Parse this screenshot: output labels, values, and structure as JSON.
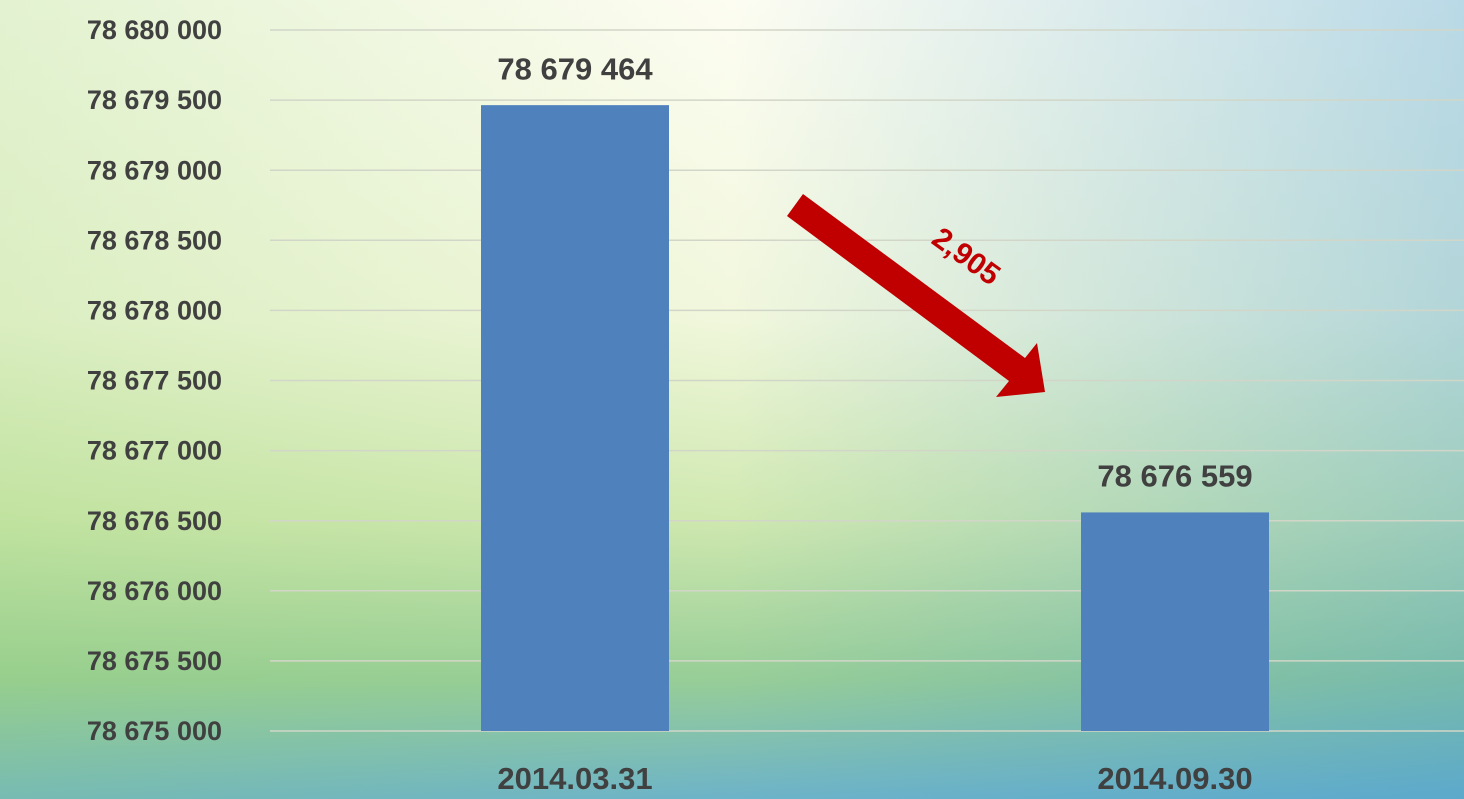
{
  "chart_data": {
    "type": "bar",
    "categories": [
      "2014.03.31",
      "2014.09.30"
    ],
    "values": [
      78679464,
      78676559
    ],
    "value_labels": [
      "78 679 464",
      "78 676 559"
    ],
    "color": "#4f81bd",
    "ylim": [
      78675000,
      78680000
    ],
    "yticks": [
      {
        "value": 78675000,
        "label": "78 675 000"
      },
      {
        "value": 78675500,
        "label": "78 675 500"
      },
      {
        "value": 78676000,
        "label": "78 676 000"
      },
      {
        "value": 78676500,
        "label": "78 676 500"
      },
      {
        "value": 78677000,
        "label": "78 677 000"
      },
      {
        "value": 78677500,
        "label": "78 677 500"
      },
      {
        "value": 78678000,
        "label": "78 678 000"
      },
      {
        "value": 78678500,
        "label": "78 678 500"
      },
      {
        "value": 78679000,
        "label": "78 679 000"
      },
      {
        "value": 78679500,
        "label": "78 679 500"
      },
      {
        "value": 78680000,
        "label": "78 680 000"
      }
    ],
    "grid": true,
    "annotations": [
      {
        "text": "2,905"
      }
    ]
  }
}
